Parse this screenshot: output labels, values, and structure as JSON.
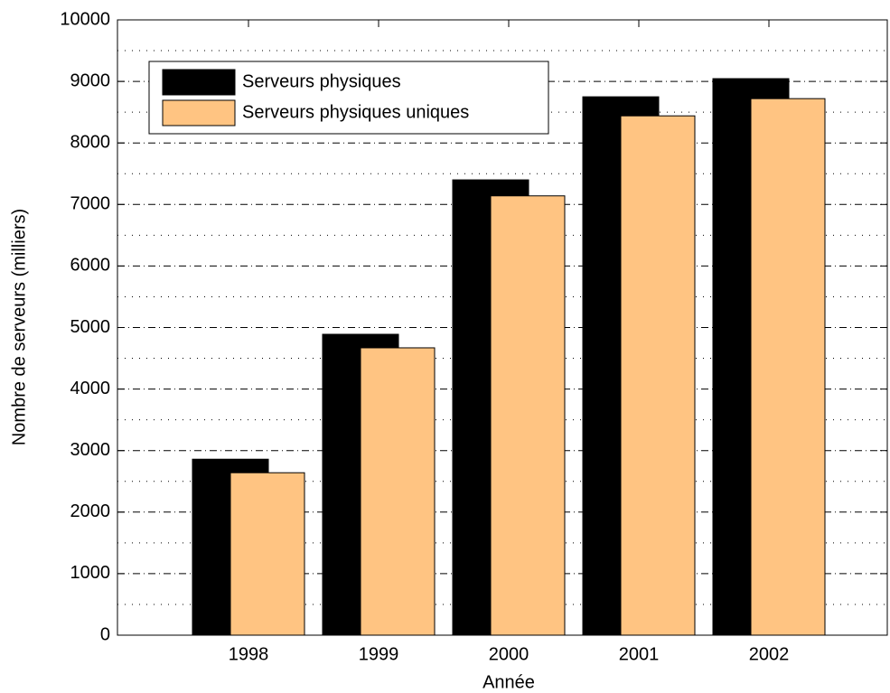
{
  "chart_data": {
    "type": "bar",
    "x_label": "Année",
    "y_label": "Nombre de serveurs (milliers)",
    "categories": [
      "1998",
      "1999",
      "2000",
      "2001",
      "2002"
    ],
    "series": [
      {
        "name": "Serveurs physiques",
        "color": "#000000",
        "values": [
          2860,
          4890,
          7400,
          8750,
          9045
        ]
      },
      {
        "name": "Serveurs physiques uniques",
        "color": "#ffc482",
        "values": [
          2640,
          4670,
          7140,
          8440,
          8720
        ]
      }
    ],
    "ylim": [
      0,
      10000
    ],
    "yticks": [
      0,
      1000,
      2000,
      3000,
      4000,
      5000,
      6000,
      7000,
      8000,
      9000,
      10000
    ],
    "grid": true,
    "minor_grid": true,
    "legend": "upper left"
  }
}
